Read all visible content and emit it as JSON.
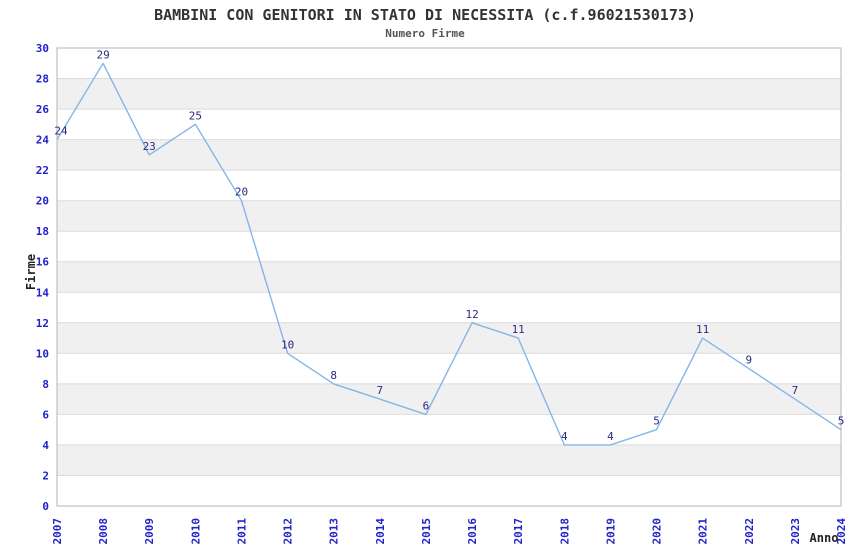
{
  "chart_data": {
    "type": "line",
    "title": "BAMBINI CON GENITORI IN STATO DI NECESSITA (c.f.96021530173)",
    "subtitle": "Numero Firme",
    "xlabel": "Anno",
    "ylabel": "Firme",
    "x": [
      2007,
      2008,
      2009,
      2010,
      2011,
      2012,
      2013,
      2014,
      2015,
      2016,
      2017,
      2018,
      2019,
      2020,
      2021,
      2022,
      2023,
      2024
    ],
    "series": [
      {
        "name": "Numero Firme",
        "values": [
          24,
          29,
          23,
          25,
          20,
          10,
          8,
          7,
          6,
          12,
          11,
          4,
          4,
          5,
          11,
          9,
          7,
          5
        ]
      }
    ],
    "ylim": [
      0,
      30
    ],
    "ytick_step": 2,
    "xtick_rotation": 90,
    "grid": "horizontal-lines-with-alternating-bands",
    "legend": "none",
    "data_labels": true,
    "colors": {
      "line": "#85b5e8",
      "tick_label": "#2222cc",
      "data_label": "#2b2b80",
      "band": "#f0f0f0",
      "gridline": "#dcdcdc",
      "border": "#b4b4b4",
      "title": "#333333",
      "subtitle": "#555555",
      "axis_label": "#222222",
      "background": "#ffffff"
    }
  }
}
